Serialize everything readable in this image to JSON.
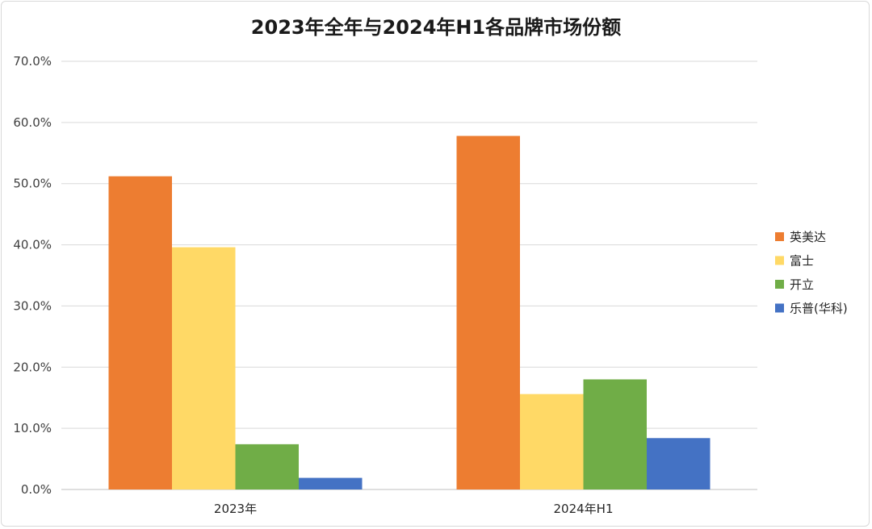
{
  "chart_data": {
    "type": "bar",
    "title": "2023年全年与2024年H1各品牌市场份额",
    "categories": [
      "2023年",
      "2024年H1"
    ],
    "series": [
      {
        "name": "英美达",
        "color": "#ED7D31",
        "values": [
          51.2,
          57.8
        ]
      },
      {
        "name": "富士",
        "color": "#FFD966",
        "values": [
          39.6,
          15.6
        ]
      },
      {
        "name": "开立",
        "color": "#70AD47",
        "values": [
          7.4,
          18.0
        ]
      },
      {
        "name": "乐普(华科)",
        "color": "#4472C4",
        "values": [
          1.9,
          8.4
        ]
      }
    ],
    "ylim": [
      0,
      70
    ],
    "yticks": [
      "0.0%",
      "10.0%",
      "20.0%",
      "30.0%",
      "40.0%",
      "50.0%",
      "60.0%",
      "70.0%"
    ],
    "legend": "right",
    "grid": true
  }
}
